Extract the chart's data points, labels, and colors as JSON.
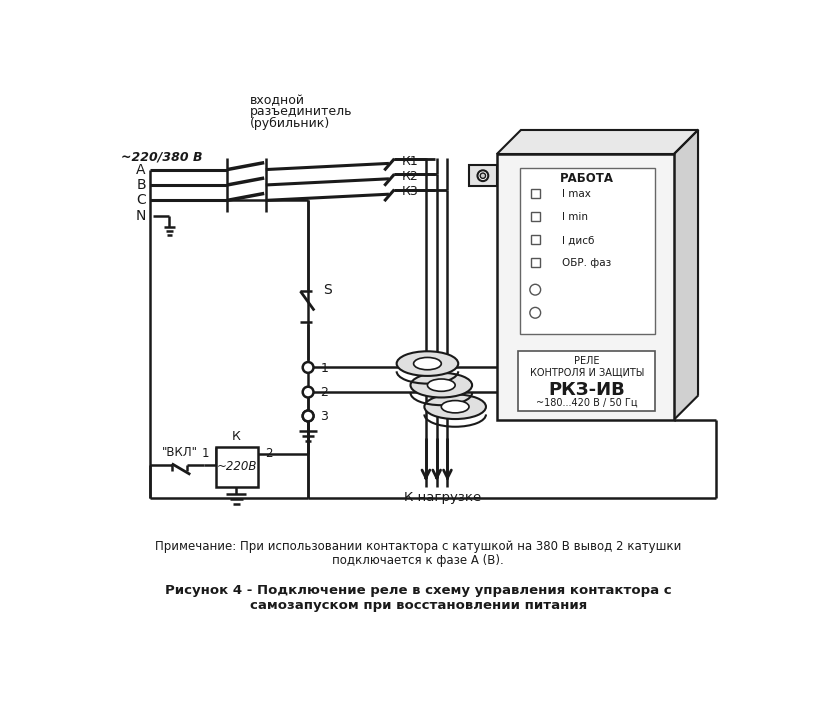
{
  "bg_color": "#ffffff",
  "lc": "#1a1a1a",
  "title": "Рисунок 4 - Подключение реле в схему управления контактора с\nсамозапуском при восстановлении питания",
  "note": "Примечание: При использовании контактора с катушкой на 380 В вывод 2 катушки\n                        подключается к фазе А (В).",
  "volt_label": "~220/380 В",
  "switch_line1": "входной",
  "switch_line2": "разъединитель",
  "switch_line3": "(рубильник)",
  "phases": [
    "A",
    "B",
    "C",
    "N"
  ],
  "contacts": [
    "К1",
    "К2",
    "К3"
  ],
  "s_label": "S",
  "vkl_label": "\"ВКЛ\"",
  "k_label": "К",
  "coil_label": "~220В",
  "load_label": "К нагрузке",
  "rabota": "РАБОТА",
  "inds": [
    "I max",
    "I min",
    "I дисб",
    "ОБР. фаз"
  ],
  "dev1": "РЕЛЕ",
  "dev2": "КОНТРОЛЯ И ЗАЩИТЫ",
  "dev3": "РКЗ-ИВ",
  "dev4": "~180...420 В / 50 Гц"
}
